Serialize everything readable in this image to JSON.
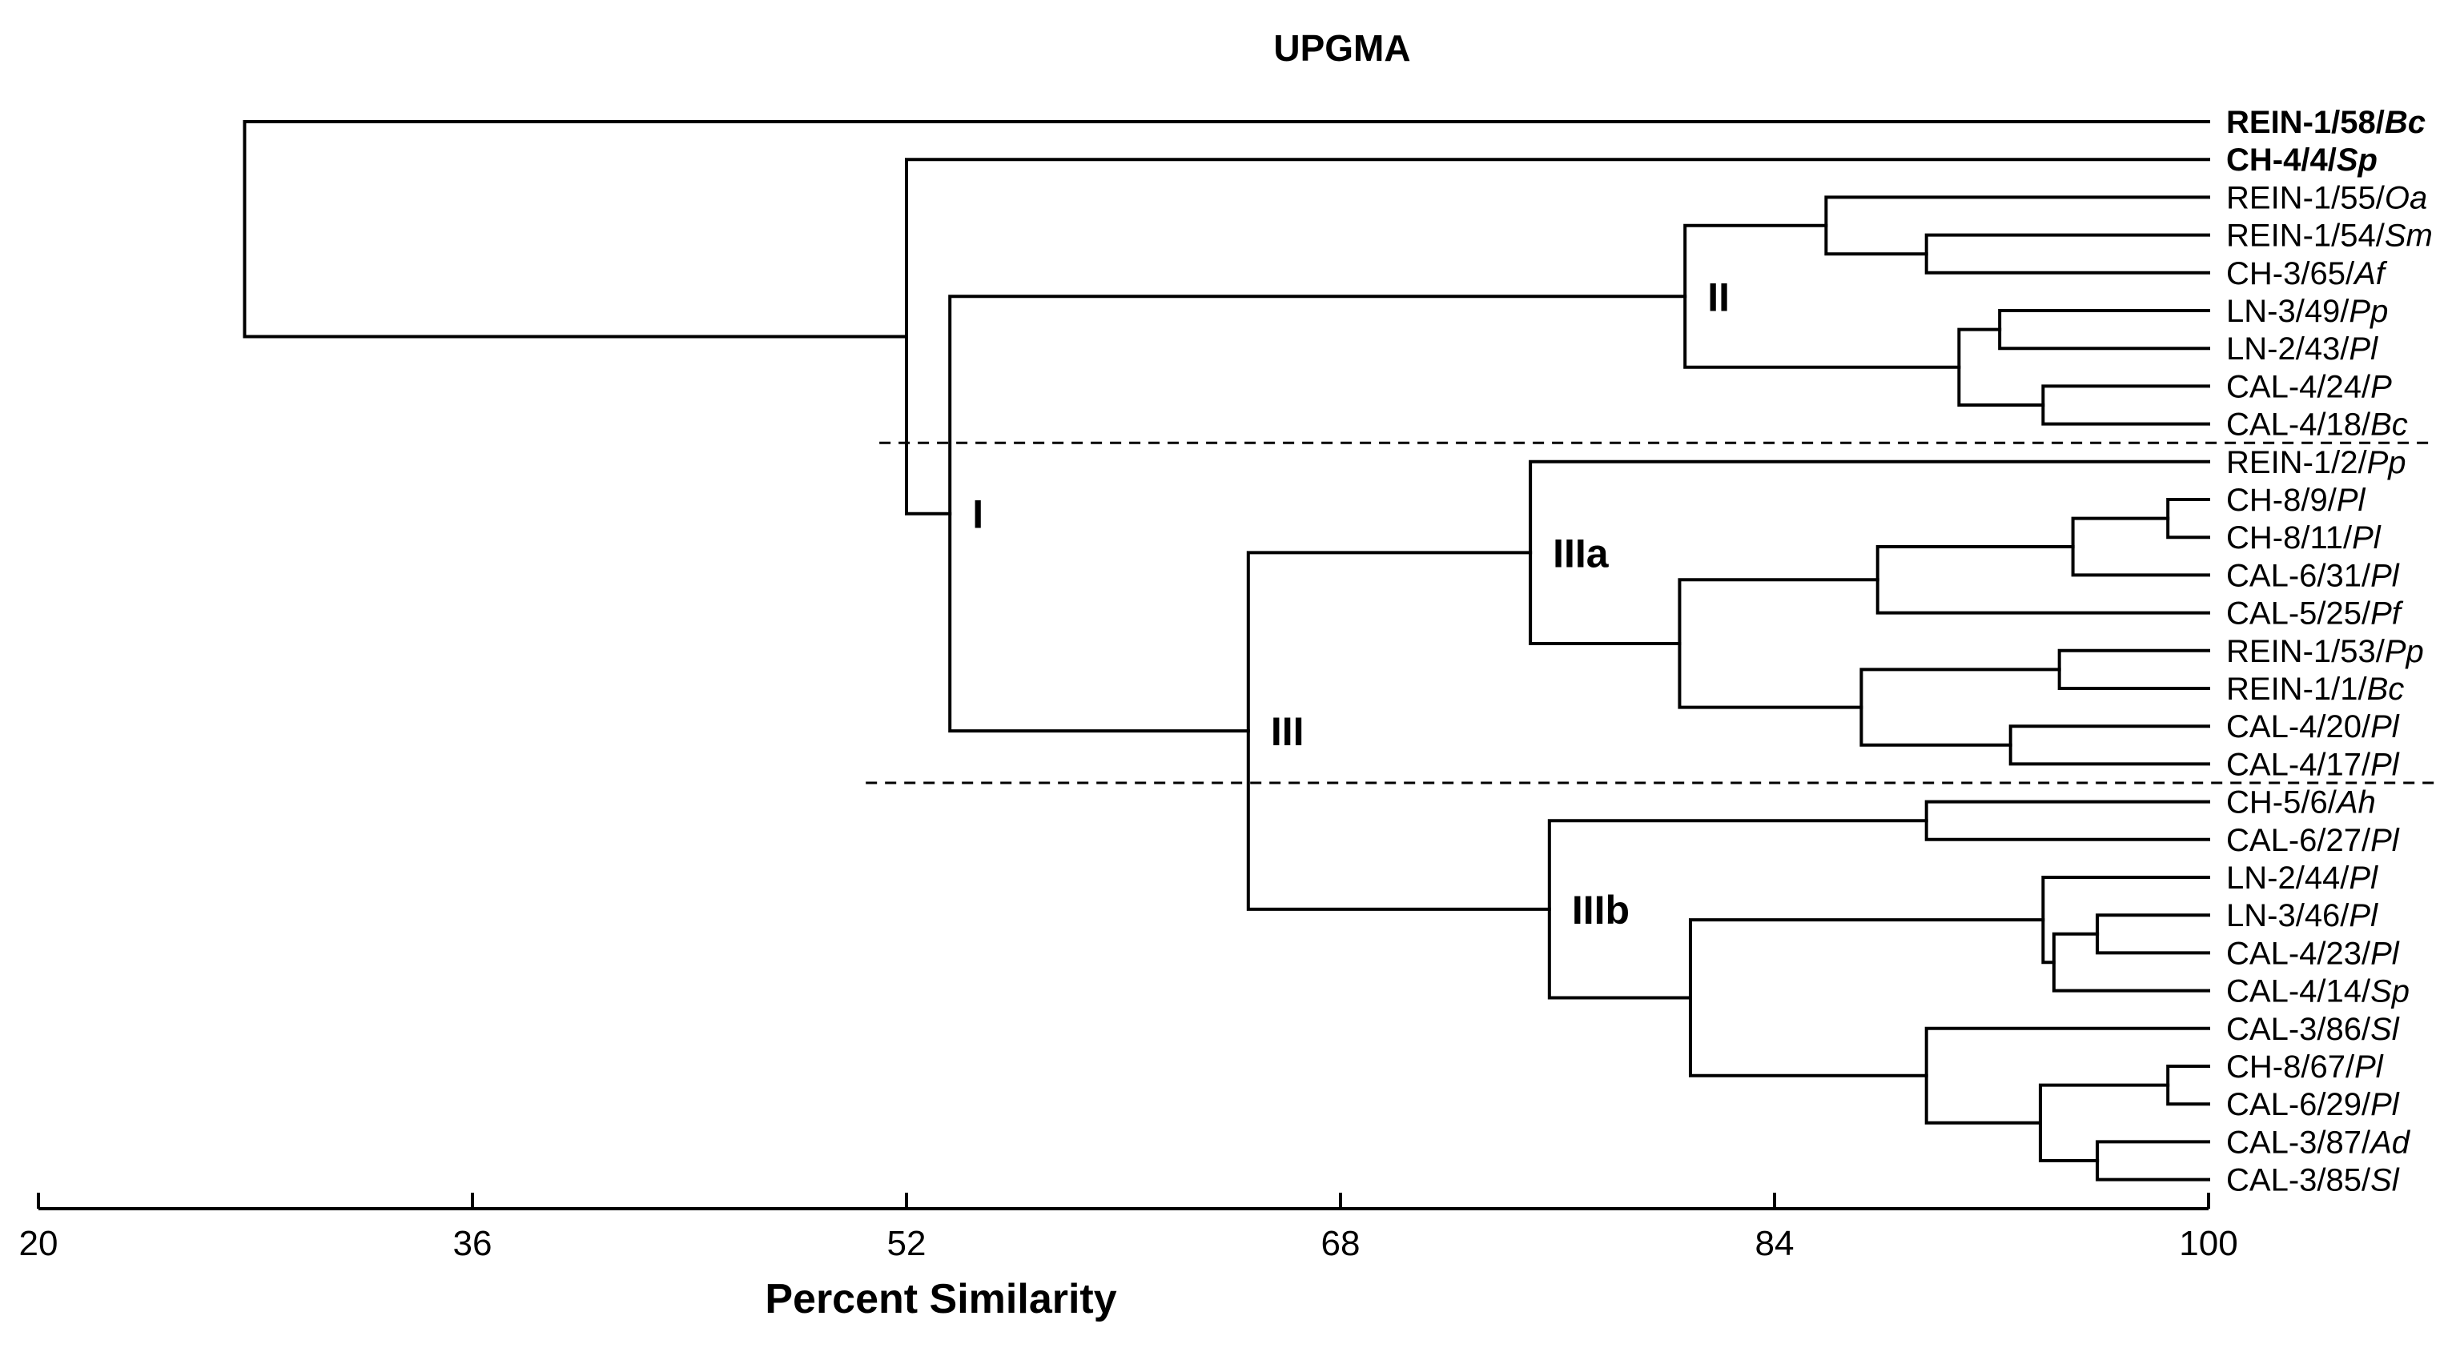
{
  "chart_data": {
    "type": "dendrogram",
    "title": "UPGMA",
    "xlabel": "Percent Similarity",
    "xlim": [
      20,
      100
    ],
    "xticks": [
      "20",
      "36",
      "52",
      "68",
      "84",
      "100"
    ],
    "xtick_values": [
      20,
      36,
      52,
      68,
      84,
      100
    ],
    "leaves": [
      {
        "id": "REIN-1/58/",
        "species": "Bc",
        "bold": true
      },
      {
        "id": "CH-4/4/",
        "species": "Sp",
        "bold": true
      },
      {
        "id": "REIN-1/55/",
        "species": "Oa"
      },
      {
        "id": "REIN-1/54/",
        "species": "Sm"
      },
      {
        "id": "CH-3/65/",
        "species": "Af"
      },
      {
        "id": "LN-3/49/",
        "species": "Pp"
      },
      {
        "id": "LN-2/43/",
        "species": "Pl"
      },
      {
        "id": "CAL-4/24/",
        "species": "P"
      },
      {
        "id": "CAL-4/18/",
        "species": "Bc"
      },
      {
        "id": "REIN-1/2/",
        "species": "Pp"
      },
      {
        "id": "CH-8/9/",
        "species": "Pl"
      },
      {
        "id": "CH-8/11/",
        "species": "Pl"
      },
      {
        "id": "CAL-6/31/",
        "species": "Pl"
      },
      {
        "id": "CAL-5/25/",
        "species": "Pf"
      },
      {
        "id": "REIN-1/53/",
        "species": "Pp"
      },
      {
        "id": "REIN-1/1/",
        "species": "Bc"
      },
      {
        "id": "CAL-4/20/",
        "species": "Pl"
      },
      {
        "id": "CAL-4/17/",
        "species": "Pl"
      },
      {
        "id": "CH-5/6/",
        "species": "Ah"
      },
      {
        "id": "CAL-6/27/",
        "species": "Pl"
      },
      {
        "id": "LN-2/44/",
        "species": "Pl"
      },
      {
        "id": "LN-3/46/",
        "species": "Pl"
      },
      {
        "id": "CAL-4/23/",
        "species": "Pl"
      },
      {
        "id": "CAL-4/14/",
        "species": "Sp"
      },
      {
        "id": "CAL-3/86/",
        "species": "Sl"
      },
      {
        "id": "CH-8/67/",
        "species": "Pl"
      },
      {
        "id": "CAL-6/29/",
        "species": "Pl"
      },
      {
        "id": "CAL-3/87/",
        "species": "Ad"
      },
      {
        "id": "CAL-3/85/",
        "species": "Sl"
      }
    ],
    "merges": [
      {
        "name": "a",
        "children": [
          10,
          11
        ],
        "similarity": 98.5
      },
      {
        "name": "b",
        "children": [
          25,
          26
        ],
        "similarity": 98.5
      },
      {
        "name": "c",
        "children": [
          21,
          22
        ],
        "similarity": 95.9
      },
      {
        "name": "d",
        "children": [
          27,
          28
        ],
        "similarity": 95.9
      },
      {
        "name": "e",
        "children": [
          "a",
          12
        ],
        "similarity": 95.0
      },
      {
        "name": "f",
        "children": [
          "c",
          23
        ],
        "similarity": 94.3
      },
      {
        "name": "g",
        "children": [
          7,
          8
        ],
        "similarity": 93.9
      },
      {
        "name": "h",
        "children": [
          20,
          "f"
        ],
        "similarity": 93.9
      },
      {
        "name": "i",
        "children": [
          14,
          15
        ],
        "similarity": 94.5
      },
      {
        "name": "j",
        "children": [
          "b",
          "d"
        ],
        "similarity": 93.8
      },
      {
        "name": "k",
        "children": [
          16,
          17
        ],
        "similarity": 92.7
      },
      {
        "name": "l",
        "children": [
          5,
          6
        ],
        "similarity": 92.3
      },
      {
        "name": "m",
        "children": [
          "l",
          "g"
        ],
        "similarity": 90.8
      },
      {
        "name": "n",
        "children": [
          3,
          4
        ],
        "similarity": 89.6
      },
      {
        "name": "o",
        "children": [
          18,
          19
        ],
        "similarity": 89.6
      },
      {
        "name": "p",
        "children": [
          24,
          "j"
        ],
        "similarity": 89.6
      },
      {
        "name": "q",
        "children": [
          "e",
          13
        ],
        "similarity": 87.8
      },
      {
        "name": "r",
        "children": [
          "i",
          "k"
        ],
        "similarity": 87.2
      },
      {
        "name": "s",
        "children": [
          2,
          "n"
        ],
        "similarity": 85.9
      },
      {
        "name": "t",
        "children": [
          "h",
          "p"
        ],
        "similarity": 80.9
      },
      {
        "name": "u",
        "children": [
          "s",
          "m"
        ],
        "similarity": 80.7
      },
      {
        "name": "v",
        "children": [
          "q",
          "r"
        ],
        "similarity": 80.5
      },
      {
        "name": "w",
        "children": [
          "o",
          "t"
        ],
        "similarity": 75.7
      },
      {
        "name": "x",
        "children": [
          9,
          "v"
        ],
        "similarity": 75.0
      },
      {
        "name": "y",
        "children": [
          "x",
          "w"
        ],
        "similarity": 64.6
      },
      {
        "name": "z",
        "children": [
          "u",
          "y"
        ],
        "similarity": 53.6
      },
      {
        "name": "aa",
        "children": [
          1,
          "z"
        ],
        "similarity": 52.0
      },
      {
        "name": "root",
        "children": [
          0,
          "aa"
        ],
        "similarity": 27.6
      }
    ],
    "cluster_labels": [
      {
        "text": "I",
        "node": "z"
      },
      {
        "text": "II",
        "node": "u"
      },
      {
        "text": "III",
        "node": "y"
      },
      {
        "text": "IIIa",
        "node": "x"
      },
      {
        "text": "IIIb",
        "node": "w"
      }
    ],
    "cutoff_lines": [
      {
        "between_leaves": [
          8,
          9
        ],
        "from_similarity": 51.0
      },
      {
        "between_leaves": [
          17,
          18
        ],
        "from_similarity": 50.5
      }
    ]
  }
}
